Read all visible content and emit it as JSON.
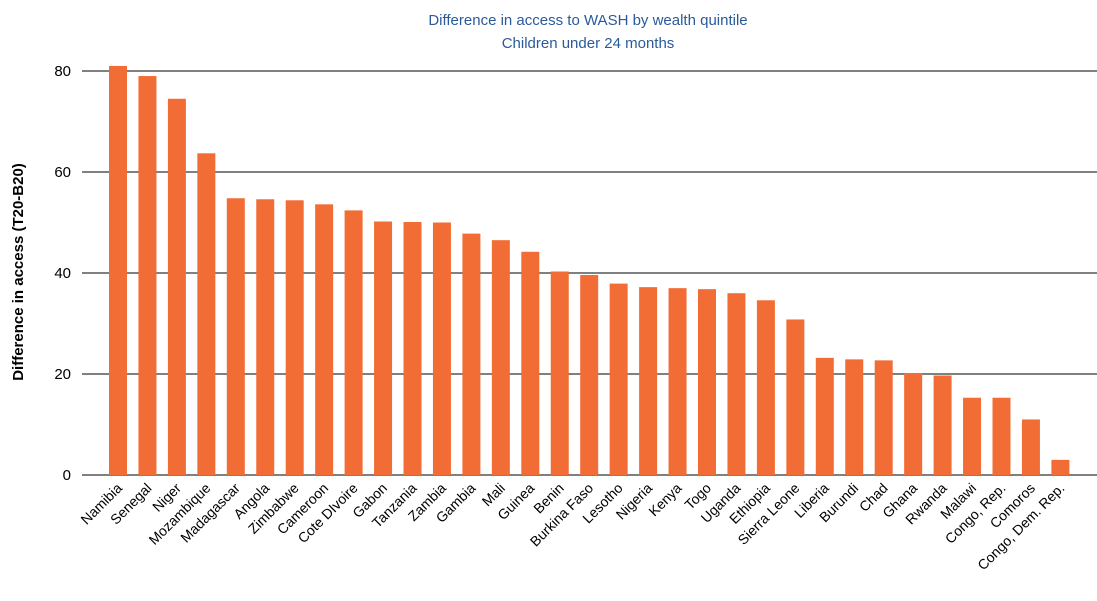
{
  "chart_data": {
    "type": "bar",
    "title": "Difference in access to WASH by wealth quintile",
    "subtitle": "Children under 24 months",
    "ylabel": "Difference in access (T20-B20)",
    "xlabel": "",
    "ylim": [
      0,
      80
    ],
    "yticks": [
      "0",
      "20",
      "40",
      "60",
      "80"
    ],
    "grid": true,
    "bar_color": "#f26d35",
    "title_color": "#2a5a9b",
    "categories": [
      "Namibia",
      "Senegal",
      "Niger",
      "Mozambique",
      "Madagascar",
      "Angola",
      "Zimbabwe",
      "Cameroon",
      "Cote DIvoire",
      "Gabon",
      "Tanzania",
      "Zambia",
      "Gambia",
      "Mali",
      "Guinea",
      "Benin",
      "Burkina Faso",
      "Lesotho",
      "Nigeria",
      "Kenya",
      "Togo",
      "Uganda",
      "Ethiopia",
      "Sierra Leone",
      "Liberia",
      "Burundi",
      "Chad",
      "Ghana",
      "Rwanda",
      "Malawi",
      "Congo, Rep.",
      "Comoros",
      "Congo, Dem. Rep."
    ],
    "values": [
      81,
      79,
      74.5,
      63.7,
      54.8,
      54.6,
      54.4,
      53.6,
      52.4,
      50.2,
      50.1,
      50.0,
      47.8,
      46.5,
      44.2,
      40.3,
      39.6,
      37.9,
      37.2,
      37.0,
      36.8,
      36.0,
      34.6,
      30.8,
      23.2,
      22.9,
      22.7,
      20.2,
      19.7,
      15.3,
      15.3,
      11.0,
      3.0
    ]
  }
}
